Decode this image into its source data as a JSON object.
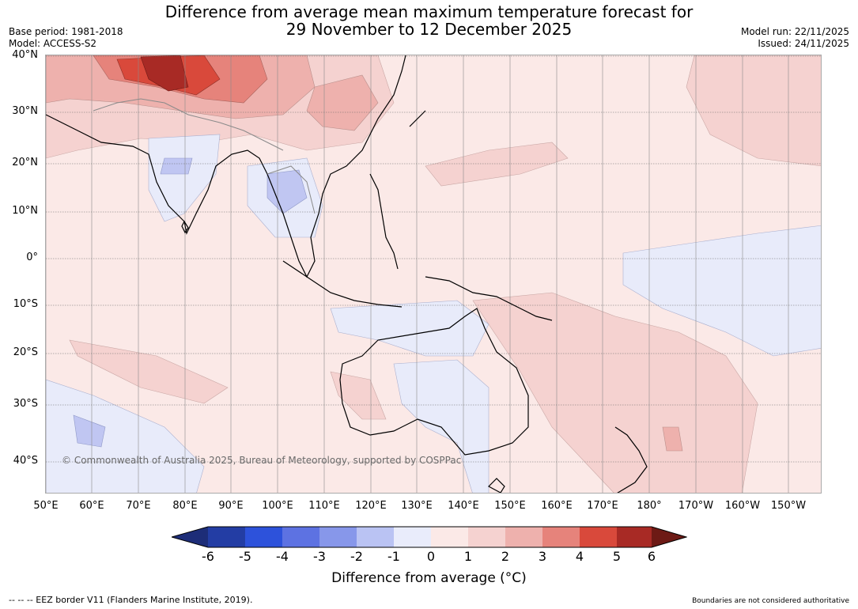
{
  "header": {
    "title_line1": "Difference from average mean maximum temperature forecast for",
    "title_line2": "29 November to 12 December 2025",
    "base_period": "Base period: 1981-2018",
    "model": "Model: ACCESS-S2",
    "model_run": "Model run: 22/11/2025",
    "issued": "Issued: 24/11/2025"
  },
  "map": {
    "lat_labels": [
      "40°N",
      "30°N",
      "20°N",
      "10°N",
      "0°",
      "10°S",
      "20°S",
      "30°S",
      "40°S"
    ],
    "lon_labels": [
      "50°E",
      "60°E",
      "70°E",
      "80°E",
      "90°E",
      "100°E",
      "110°E",
      "120°E",
      "130°E",
      "140°E",
      "150°E",
      "160°E",
      "170°E",
      "180°",
      "170°W",
      "160°W",
      "150°W"
    ],
    "copyright": "© Commonwealth of Australia 2025, Bureau of Meteorology, supported by COSPPac",
    "colors": {
      "ocean_default": "#fbe9e7",
      "warm_1_2": "#f5d2d0",
      "warm_2_3": "#eeb1ad",
      "warm_3_4": "#e6837b",
      "warm_4_5": "#d9493b",
      "warm_5_6": "#a82a25",
      "cool_0_1": "#e8ebfa",
      "cool_1_2": "#c0c6f2"
    }
  },
  "colorbar": {
    "ticks": [
      "-6",
      "-5",
      "-4",
      "-3",
      "-2",
      "-1",
      "0",
      "1",
      "2",
      "3",
      "4",
      "5",
      "6"
    ],
    "colors": [
      "#233da4",
      "#2d52db",
      "#5d72e2",
      "#8797ea",
      "#bac3f3",
      "#e9ecfb",
      "#fbe9e7",
      "#f5d2d0",
      "#eeb1ad",
      "#e6837b",
      "#d9493b",
      "#a82a25"
    ],
    "low_extend": "#1d2d78",
    "high_extend": "#6d1a15",
    "label": "Difference from average (°C)"
  },
  "footer": {
    "eez": "--  --  -- EEZ border V11 (Flanders Marine Institute, 2019).",
    "boundaries": "Boundaries are not considered authoritative"
  }
}
